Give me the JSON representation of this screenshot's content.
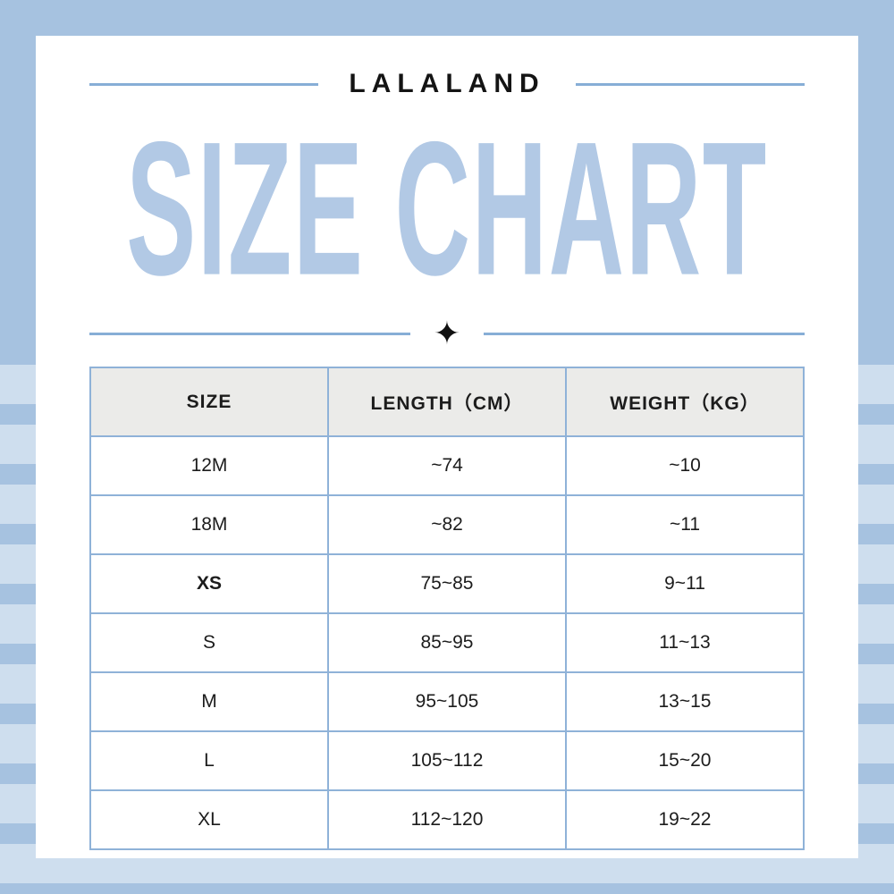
{
  "header": {
    "brand": "LALALAND",
    "title": "SIZE CHART",
    "divider_icon": "✦"
  },
  "colors": {
    "frame_blue": "#a6c2e0",
    "title_blue": "#b2c9e5",
    "line_blue": "#87aed6",
    "table_border_blue": "#8fb2d8",
    "header_row_bg": "#ebebe9",
    "text_dark": "#1c1c1c"
  },
  "chart_data": {
    "type": "table",
    "title": "SIZE CHART",
    "columns": [
      "SIZE",
      "LENGTH（CM）",
      "WEIGHT（KG）"
    ],
    "rows": [
      {
        "size": "12M",
        "length_cm": "~74",
        "weight_kg": "~10",
        "bold": false
      },
      {
        "size": "18M",
        "length_cm": "~82",
        "weight_kg": "~11",
        "bold": false
      },
      {
        "size": "XS",
        "length_cm": "75~85",
        "weight_kg": "9~11",
        "bold": true
      },
      {
        "size": "S",
        "length_cm": "85~95",
        "weight_kg": "11~13",
        "bold": false
      },
      {
        "size": "M",
        "length_cm": "95~105",
        "weight_kg": "13~15",
        "bold": false
      },
      {
        "size": "L",
        "length_cm": "105~112",
        "weight_kg": "15~20",
        "bold": false
      },
      {
        "size": "XL",
        "length_cm": "112~120",
        "weight_kg": "19~22",
        "bold": false
      }
    ]
  }
}
